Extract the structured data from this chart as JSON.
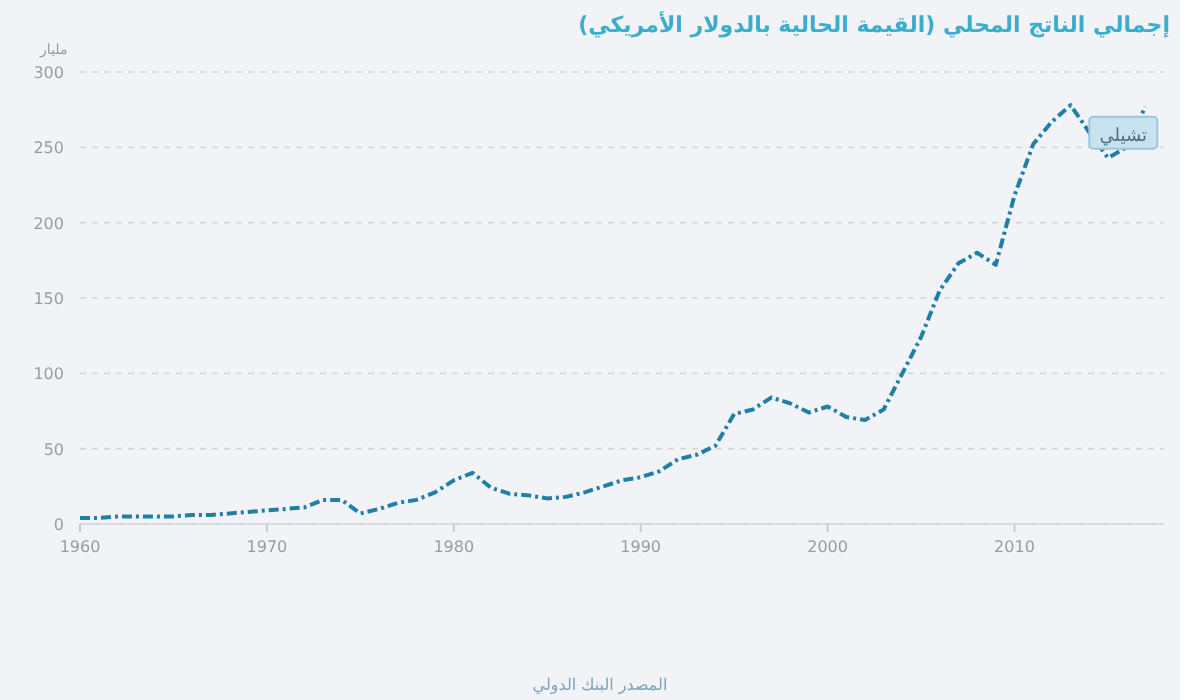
{
  "chart_data": {
    "type": "line",
    "title": "إجمالي الناتج المحلي (القيمة الحالية بالدولار الأمريكي)",
    "ylabel": "مليار",
    "x": [
      1960,
      1961,
      1962,
      1963,
      1964,
      1965,
      1966,
      1967,
      1968,
      1969,
      1970,
      1971,
      1972,
      1973,
      1974,
      1975,
      1976,
      1977,
      1978,
      1979,
      1980,
      1981,
      1982,
      1983,
      1984,
      1985,
      1986,
      1987,
      1988,
      1989,
      1990,
      1991,
      1992,
      1993,
      1994,
      1995,
      1996,
      1997,
      1998,
      1999,
      2000,
      2001,
      2002,
      2003,
      2004,
      2005,
      2006,
      2007,
      2008,
      2009,
      2010,
      2011,
      2012,
      2013,
      2014,
      2015,
      2016,
      2017
    ],
    "series": [
      {
        "color": "#1f7fa6",
        "values": [
          4,
          4,
          5,
          5,
          5,
          5,
          6,
          6,
          7,
          8,
          9,
          10,
          11,
          16,
          16,
          7,
          10,
          14,
          16,
          21,
          29,
          34,
          24,
          20,
          19,
          17,
          18,
          21,
          25,
          29,
          31,
          35,
          43,
          46,
          52,
          73,
          76,
          84,
          80,
          74,
          78,
          71,
          69,
          76,
          100,
          124,
          155,
          173,
          180,
          172,
          218,
          252,
          267,
          278,
          260,
          243,
          250,
          277
        ]
      }
    ],
    "xlim": [
      1960,
      2018
    ],
    "xticks": [
      1960,
      1970,
      1980,
      1990,
      2000,
      2010
    ],
    "ylim": [
      0,
      300
    ],
    "yticks": [
      0,
      50,
      100,
      150,
      200,
      250,
      300
    ],
    "grid": "y",
    "line_style": "dashed",
    "marker": "none",
    "annotations": [
      {
        "text": "تشيلي",
        "x": 2017,
        "y": 277
      },
      "المصدر البنك الدولي"
    ]
  }
}
